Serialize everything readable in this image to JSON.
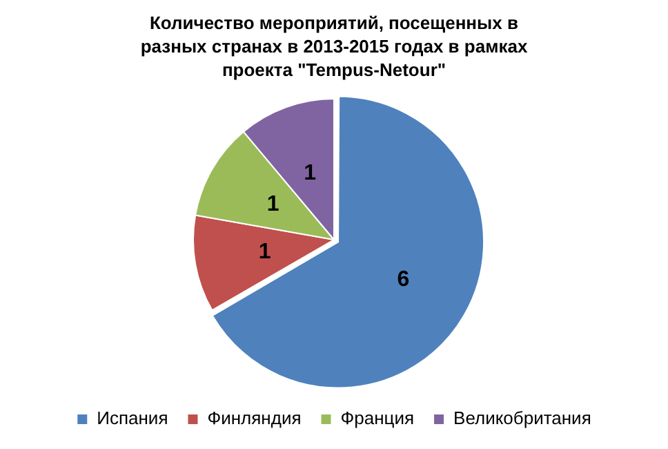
{
  "chart_data": {
    "type": "pie",
    "title": "Количество мероприятий, посещенных в разных странах в 2013-2015 годах в рамках проекта \"Tempus-Netour\"",
    "categories": [
      "Испания",
      "Финляндия",
      "Франция",
      "Великобритания"
    ],
    "values": [
      6,
      1,
      1,
      1
    ],
    "colors": [
      "#4f81bd",
      "#c0504d",
      "#9bbb59",
      "#8064a2"
    ],
    "data_labels": true,
    "legend": "bottom"
  }
}
